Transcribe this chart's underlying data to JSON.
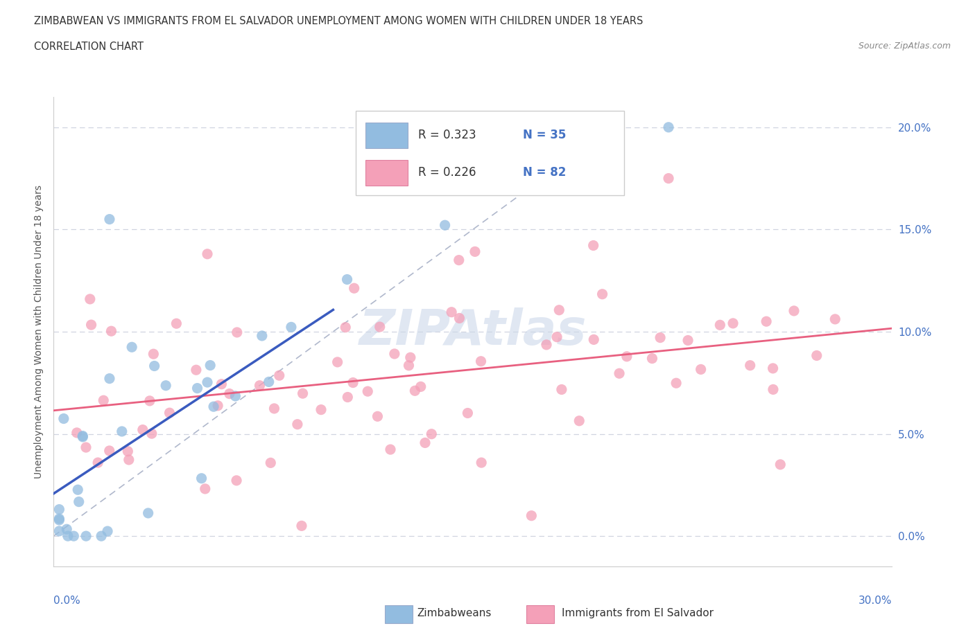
{
  "title_line1": "ZIMBABWEAN VS IMMIGRANTS FROM EL SALVADOR UNEMPLOYMENT AMONG WOMEN WITH CHILDREN UNDER 18 YEARS",
  "title_line2": "CORRELATION CHART",
  "source": "Source: ZipAtlas.com",
  "ylabel": "Unemployment Among Women with Children Under 18 years",
  "ytick_vals": [
    0.0,
    5.0,
    10.0,
    15.0,
    20.0
  ],
  "ytick_labels": [
    "0.0%",
    "5.0%",
    "10.0%",
    "15.0%",
    "20.0%"
  ],
  "xrange": [
    0.0,
    30.0
  ],
  "yrange": [
    -1.5,
    21.5
  ],
  "zimbabwean_color": "#92bce0",
  "salvador_color": "#f4a0b8",
  "trendline_zim_color": "#3a5bbf",
  "trendline_sal_color": "#e86080",
  "diagonal_color": "#b0b8cc",
  "grid_color": "#d0d4e0",
  "background_color": "#ffffff",
  "watermark_color": "#ccd8ea",
  "legend_r1": "R = 0.323",
  "legend_n1": "N = 35",
  "legend_r2": "R = 0.226",
  "legend_n2": "N = 82"
}
